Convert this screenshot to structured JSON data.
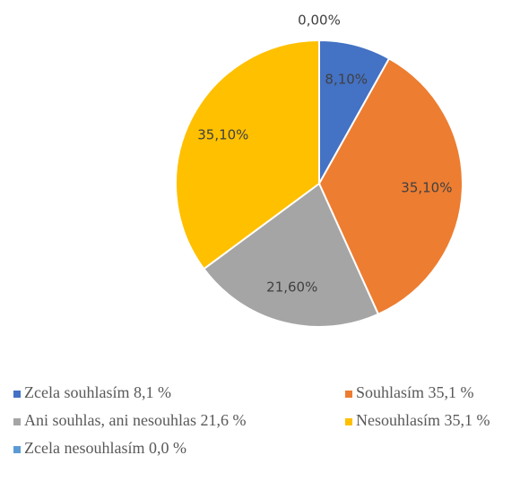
{
  "chart_data": {
    "type": "pie",
    "categories": [
      "Zcela souhlasím 8,1 %",
      "Souhlasím 35,1 %",
      "Ani souhlas, ani nesouhlas 21,6 %",
      "Nesouhlasím 35,1 %",
      "Zcela nesouhlasím 0,0 %"
    ],
    "values": [
      8.1,
      35.1,
      21.6,
      35.1,
      0
    ],
    "value_labels": [
      "8,10%",
      "35,10%",
      "21,60%",
      "35,10%",
      "0,00%"
    ],
    "colors": [
      "#4472c4",
      "#ed7d31",
      "#a5a5a5",
      "#ffc000",
      "#5b9bd5"
    ],
    "legend": "bottom"
  }
}
